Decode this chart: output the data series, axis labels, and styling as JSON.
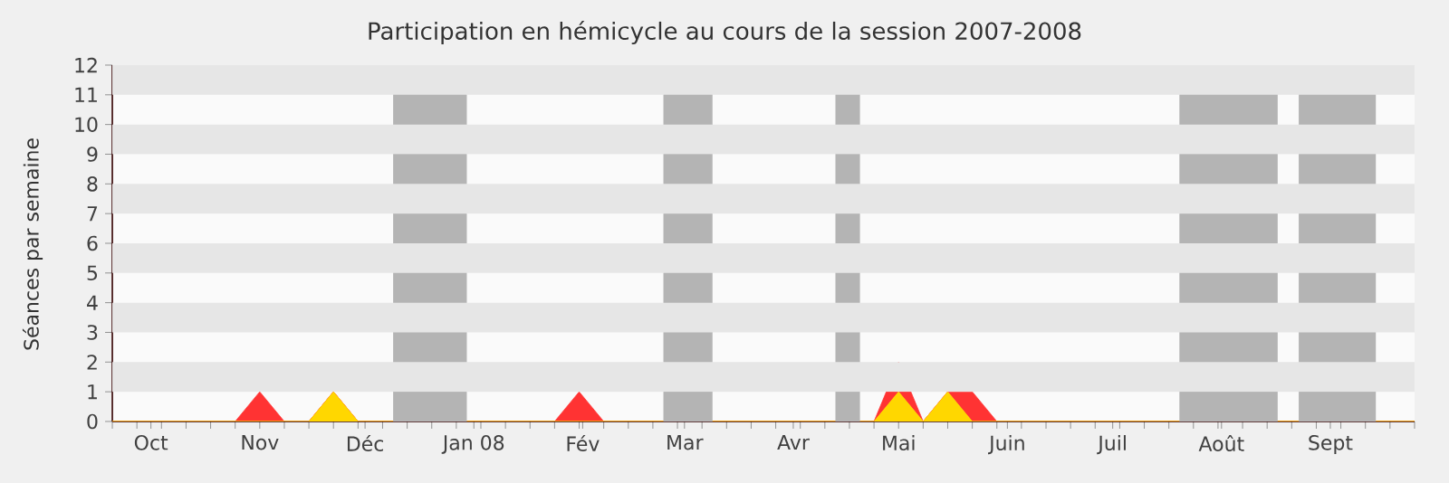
{
  "chart_data": {
    "type": "area",
    "stacked": true,
    "title": "Participation en hémicycle au cours de la session 2007-2008",
    "ylabel": "Séances par semaine",
    "x": [
      "2007-09-20",
      "2007-09-27",
      "2007-10-04",
      "2007-10-11",
      "2007-10-18",
      "2007-10-25",
      "2007-11-01",
      "2007-11-08",
      "2007-11-15",
      "2007-11-22",
      "2007-11-29",
      "2007-12-06",
      "2007-12-13",
      "2007-12-20",
      "2007-12-27",
      "2008-01-03",
      "2008-01-10",
      "2008-01-17",
      "2008-01-24",
      "2008-01-31",
      "2008-02-07",
      "2008-02-14",
      "2008-02-21",
      "2008-02-28",
      "2008-03-06",
      "2008-03-13",
      "2008-03-20",
      "2008-03-27",
      "2008-04-03",
      "2008-04-10",
      "2008-04-17",
      "2008-04-24",
      "2008-05-01",
      "2008-05-08",
      "2008-05-15",
      "2008-05-22",
      "2008-05-29",
      "2008-06-05",
      "2008-06-12",
      "2008-06-19",
      "2008-06-26",
      "2008-07-03",
      "2008-07-10",
      "2008-07-17",
      "2008-07-24",
      "2008-07-31",
      "2008-08-07",
      "2008-08-14",
      "2008-08-21",
      "2008-08-28",
      "2008-09-04",
      "2008-09-11",
      "2008-09-18",
      "2008-09-25"
    ],
    "xlim": [
      "2007-09-20",
      "2008-09-25"
    ],
    "xticks": [
      {
        "value": "2007-10-01",
        "label": "Oct"
      },
      {
        "value": "2007-11-01",
        "label": "Nov"
      },
      {
        "value": "2007-12-01",
        "label": "Déc"
      },
      {
        "value": "2008-01-01",
        "label": "Jan 08"
      },
      {
        "value": "2008-02-01",
        "label": "Fév"
      },
      {
        "value": "2008-03-01",
        "label": "Mar"
      },
      {
        "value": "2008-04-01",
        "label": "Avr"
      },
      {
        "value": "2008-05-01",
        "label": "Mai"
      },
      {
        "value": "2008-06-01",
        "label": "Juin"
      },
      {
        "value": "2008-07-01",
        "label": "Juil"
      },
      {
        "value": "2008-08-01",
        "label": "Août"
      },
      {
        "value": "2008-09-01",
        "label": "Sept"
      },
      {
        "value": "2007-09-20",
        "label": null
      },
      {
        "value": "2007-09-27",
        "label": null
      },
      {
        "value": "2007-10-04",
        "label": null
      },
      {
        "value": "2007-10-11",
        "label": null
      },
      {
        "value": "2007-10-18",
        "label": null
      },
      {
        "value": "2007-10-25",
        "label": null
      },
      {
        "value": "2007-11-08",
        "label": null
      },
      {
        "value": "2007-11-15",
        "label": null
      },
      {
        "value": "2007-11-22",
        "label": null
      },
      {
        "value": "2007-11-29",
        "label": null
      },
      {
        "value": "2007-12-06",
        "label": null
      },
      {
        "value": "2007-12-13",
        "label": null
      },
      {
        "value": "2007-12-20",
        "label": null
      },
      {
        "value": "2007-12-27",
        "label": null
      },
      {
        "value": "2008-01-03",
        "label": null
      },
      {
        "value": "2008-01-10",
        "label": null
      },
      {
        "value": "2008-01-17",
        "label": null
      },
      {
        "value": "2008-01-24",
        "label": null
      },
      {
        "value": "2008-01-31",
        "label": null
      },
      {
        "value": "2008-02-07",
        "label": null
      },
      {
        "value": "2008-02-14",
        "label": null
      },
      {
        "value": "2008-02-21",
        "label": null
      },
      {
        "value": "2008-02-28",
        "label": null
      },
      {
        "value": "2008-03-06",
        "label": null
      },
      {
        "value": "2008-03-13",
        "label": null
      },
      {
        "value": "2008-03-20",
        "label": null
      },
      {
        "value": "2008-03-27",
        "label": null
      },
      {
        "value": "2008-04-03",
        "label": null
      },
      {
        "value": "2008-04-10",
        "label": null
      },
      {
        "value": "2008-04-17",
        "label": null
      },
      {
        "value": "2008-04-24",
        "label": null
      },
      {
        "value": "2008-05-08",
        "label": null
      },
      {
        "value": "2008-05-15",
        "label": null
      },
      {
        "value": "2008-05-22",
        "label": null
      },
      {
        "value": "2008-05-29",
        "label": null
      },
      {
        "value": "2008-06-05",
        "label": null
      },
      {
        "value": "2008-06-12",
        "label": null
      },
      {
        "value": "2008-06-19",
        "label": null
      },
      {
        "value": "2008-06-26",
        "label": null
      },
      {
        "value": "2008-07-03",
        "label": null
      },
      {
        "value": "2008-07-10",
        "label": null
      },
      {
        "value": "2008-07-17",
        "label": null
      },
      {
        "value": "2008-07-24",
        "label": null
      },
      {
        "value": "2008-07-31",
        "label": null
      },
      {
        "value": "2008-08-07",
        "label": null
      },
      {
        "value": "2008-08-14",
        "label": null
      },
      {
        "value": "2008-08-21",
        "label": null
      },
      {
        "value": "2008-08-28",
        "label": null
      },
      {
        "value": "2008-09-04",
        "label": null
      },
      {
        "value": "2008-09-11",
        "label": null
      },
      {
        "value": "2008-09-18",
        "label": null
      },
      {
        "value": "2008-09-25",
        "label": null
      }
    ],
    "ylim": [
      0,
      12
    ],
    "yticks": [
      0,
      1,
      2,
      3,
      4,
      5,
      6,
      7,
      8,
      9,
      10,
      11,
      12
    ],
    "bands": [
      {
        "axis": "y",
        "from": 1,
        "to": 2,
        "color": "#e6e6e6"
      },
      {
        "axis": "y",
        "from": 3,
        "to": 4,
        "color": "#e6e6e6"
      },
      {
        "axis": "y",
        "from": 5,
        "to": 6,
        "color": "#e6e6e6"
      },
      {
        "axis": "y",
        "from": 7,
        "to": 8,
        "color": "#e6e6e6"
      },
      {
        "axis": "y",
        "from": 9,
        "to": 10,
        "color": "#e6e6e6"
      },
      {
        "axis": "y",
        "from": 11,
        "to": 12,
        "color": "#e6e6e6"
      },
      {
        "axis": "x",
        "from": "2007-12-09",
        "to": "2007-12-30",
        "color": "#b4b4b4"
      },
      {
        "axis": "x",
        "from": "2008-02-24",
        "to": "2008-03-09",
        "color": "#b4b4b4"
      },
      {
        "axis": "x",
        "from": "2008-04-13",
        "to": "2008-04-20",
        "color": "#b4b4b4"
      },
      {
        "axis": "x",
        "from": "2008-07-20",
        "to": "2008-08-17",
        "color": "#b4b4b4"
      },
      {
        "axis": "x",
        "from": "2008-08-23",
        "to": "2008-09-14",
        "color": "#b4b4b4"
      }
    ],
    "series": [
      {
        "color": "#ffd700",
        "values": [
          0,
          0,
          0,
          0,
          0,
          0,
          0,
          0,
          0,
          1,
          0,
          0,
          0,
          0,
          0,
          0,
          0,
          0,
          0,
          0,
          0,
          0,
          0,
          0,
          0,
          0,
          0,
          0,
          0,
          0,
          0,
          0,
          1,
          0,
          1,
          0,
          0,
          0,
          0,
          0,
          0,
          0,
          0,
          0,
          0,
          0,
          0,
          0,
          0,
          0,
          0,
          0,
          0,
          0
        ]
      },
      {
        "color": "#ff3333",
        "values": [
          0,
          0,
          0,
          0,
          0,
          0,
          1,
          0,
          0,
          0,
          0,
          0,
          0,
          0,
          0,
          0,
          0,
          0,
          0,
          1,
          0,
          0,
          0,
          0,
          0,
          0,
          0,
          0,
          0,
          0,
          0,
          0,
          1,
          0,
          0,
          1,
          0,
          0,
          0,
          0,
          0,
          0,
          0,
          0,
          0,
          0,
          0,
          0,
          0,
          0,
          0,
          0,
          0,
          0
        ]
      }
    ]
  }
}
